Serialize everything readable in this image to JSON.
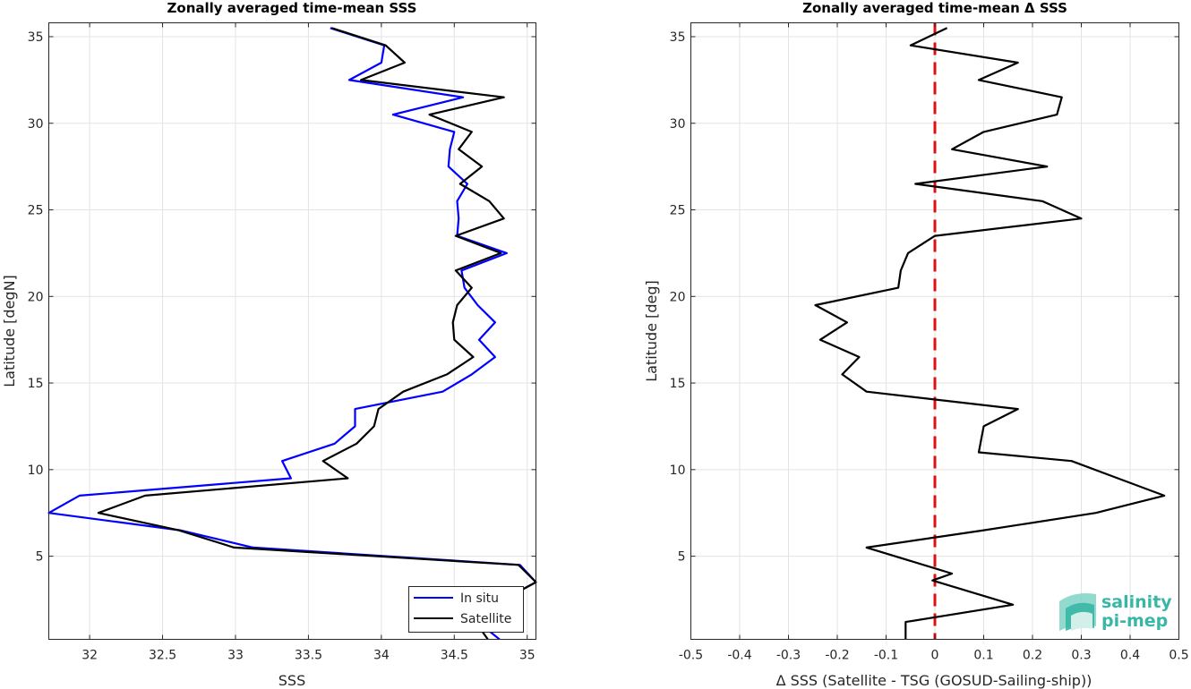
{
  "chart_data": [
    {
      "type": "line",
      "title": "Zonally averaged time-mean SSS",
      "xlabel": "SSS",
      "ylabel": "Latitude [degN]",
      "xlim": [
        31.72,
        35.06
      ],
      "ylim": [
        0.2,
        35.8
      ],
      "xticks": [
        32,
        32.5,
        33,
        33.5,
        34,
        34.5,
        35
      ],
      "xtick_labels": [
        "32",
        "32.5",
        "33",
        "33.5",
        "34",
        "34.5",
        "35"
      ],
      "yticks": [
        5,
        10,
        15,
        20,
        25,
        30,
        35
      ],
      "ytick_labels": [
        "5",
        "10",
        "15",
        "20",
        "25",
        "30",
        "35"
      ],
      "grid": true,
      "legend": {
        "placement": "bottom-right",
        "entries": [
          "In situ",
          "Satellite"
        ]
      },
      "series": [
        {
          "name": "In situ",
          "color": "#0000ff",
          "points": [
            [
              34.81,
              0.2
            ],
            [
              34.62,
              1.5
            ],
            [
              35.06,
              3.5
            ],
            [
              34.95,
              4.5
            ],
            [
              33.12,
              5.5
            ],
            [
              32.62,
              6.5
            ],
            [
              31.72,
              7.5
            ],
            [
              31.93,
              8.5
            ],
            [
              33.38,
              9.5
            ],
            [
              33.32,
              10.5
            ],
            [
              33.68,
              11.5
            ],
            [
              33.82,
              12.5
            ],
            [
              33.82,
              13.5
            ],
            [
              34.42,
              14.5
            ],
            [
              34.62,
              15.5
            ],
            [
              34.78,
              16.5
            ],
            [
              34.67,
              17.5
            ],
            [
              34.78,
              18.5
            ],
            [
              34.66,
              19.5
            ],
            [
              34.57,
              20.5
            ],
            [
              34.55,
              21.5
            ],
            [
              34.86,
              22.5
            ],
            [
              34.52,
              23.5
            ],
            [
              34.53,
              24.5
            ],
            [
              34.52,
              25.5
            ],
            [
              34.59,
              26.5
            ],
            [
              34.46,
              27.5
            ],
            [
              34.47,
              28.5
            ],
            [
              34.5,
              29.5
            ],
            [
              34.08,
              30.5
            ],
            [
              34.56,
              31.5
            ],
            [
              33.78,
              32.5
            ],
            [
              34.0,
              33.5
            ],
            [
              34.02,
              34.5
            ],
            [
              33.65,
              35.5
            ]
          ]
        },
        {
          "name": "Satellite",
          "color": "#000000",
          "points": [
            [
              34.73,
              0.2
            ],
            [
              34.62,
              1.5
            ],
            [
              35.06,
              3.5
            ],
            [
              34.94,
              4.5
            ],
            [
              32.99,
              5.5
            ],
            [
              32.61,
              6.5
            ],
            [
              32.06,
              7.5
            ],
            [
              32.38,
              8.5
            ],
            [
              33.77,
              9.5
            ],
            [
              33.6,
              10.5
            ],
            [
              33.83,
              11.5
            ],
            [
              33.95,
              12.5
            ],
            [
              33.98,
              13.5
            ],
            [
              34.15,
              14.5
            ],
            [
              34.45,
              15.5
            ],
            [
              34.63,
              16.5
            ],
            [
              34.5,
              17.5
            ],
            [
              34.49,
              18.5
            ],
            [
              34.52,
              19.5
            ],
            [
              34.62,
              20.5
            ],
            [
              34.51,
              21.5
            ],
            [
              34.82,
              22.5
            ],
            [
              34.51,
              23.5
            ],
            [
              34.84,
              24.5
            ],
            [
              34.74,
              25.5
            ],
            [
              34.54,
              26.5
            ],
            [
              34.69,
              27.5
            ],
            [
              34.53,
              28.5
            ],
            [
              34.62,
              29.5
            ],
            [
              34.33,
              30.5
            ],
            [
              34.84,
              31.5
            ],
            [
              33.86,
              32.5
            ],
            [
              34.16,
              33.5
            ],
            [
              34.03,
              34.5
            ],
            [
              33.66,
              35.5
            ]
          ]
        }
      ]
    },
    {
      "type": "line",
      "title": "Zonally averaged time-mean Δ SSS",
      "xlabel": "Δ SSS (Satellite - TSG (GOSUD-Sailing-ship))",
      "ylabel": "Latitude [deg]",
      "xlim": [
        -0.5,
        0.5
      ],
      "ylim": [
        0.2,
        35.8
      ],
      "xticks": [
        -0.5,
        -0.4,
        -0.3,
        -0.2,
        -0.1,
        0,
        0.1,
        0.2,
        0.3,
        0.4,
        0.5
      ],
      "xtick_labels": [
        "-0.5",
        "-0.4",
        "-0.3",
        "-0.2",
        "-0.1",
        "0",
        "0.1",
        "0.2",
        "0.3",
        "0.4",
        "0.5"
      ],
      "yticks": [
        5,
        10,
        15,
        20,
        25,
        30,
        35
      ],
      "ytick_labels": [
        "5",
        "10",
        "15",
        "20",
        "25",
        "30",
        "35"
      ],
      "grid": true,
      "reference_line": {
        "x": 0,
        "color": "#dd1111",
        "style": "dashed"
      },
      "series": [
        {
          "name": "",
          "color": "#000000",
          "points": [
            [
              -0.06,
              0.2
            ],
            [
              -0.06,
              1.2
            ],
            [
              0.16,
              2.2
            ],
            [
              -0.005,
              3.6
            ],
            [
              0.035,
              4.0
            ],
            [
              -0.14,
              5.5
            ],
            [
              0.1,
              6.5
            ],
            [
              0.33,
              7.5
            ],
            [
              0.47,
              8.5
            ],
            [
              0.28,
              10.5
            ],
            [
              0.09,
              11.0
            ],
            [
              0.1,
              12.5
            ],
            [
              0.17,
              13.5
            ],
            [
              -0.14,
              14.5
            ],
            [
              -0.19,
              15.5
            ],
            [
              -0.155,
              16.5
            ],
            [
              -0.235,
              17.5
            ],
            [
              -0.18,
              18.5
            ],
            [
              -0.245,
              19.5
            ],
            [
              -0.075,
              20.5
            ],
            [
              -0.07,
              21.5
            ],
            [
              -0.055,
              22.5
            ],
            [
              0.0,
              23.5
            ],
            [
              0.3,
              24.5
            ],
            [
              0.22,
              25.5
            ],
            [
              -0.04,
              26.5
            ],
            [
              0.23,
              27.5
            ],
            [
              0.035,
              28.5
            ],
            [
              0.1,
              29.5
            ],
            [
              0.25,
              30.5
            ],
            [
              0.26,
              31.5
            ],
            [
              0.09,
              32.5
            ],
            [
              0.17,
              33.5
            ],
            [
              -0.05,
              34.5
            ],
            [
              0.025,
              35.5
            ]
          ]
        }
      ]
    }
  ],
  "logo": {
    "line1": "salinity",
    "line2": "pi-mep"
  }
}
